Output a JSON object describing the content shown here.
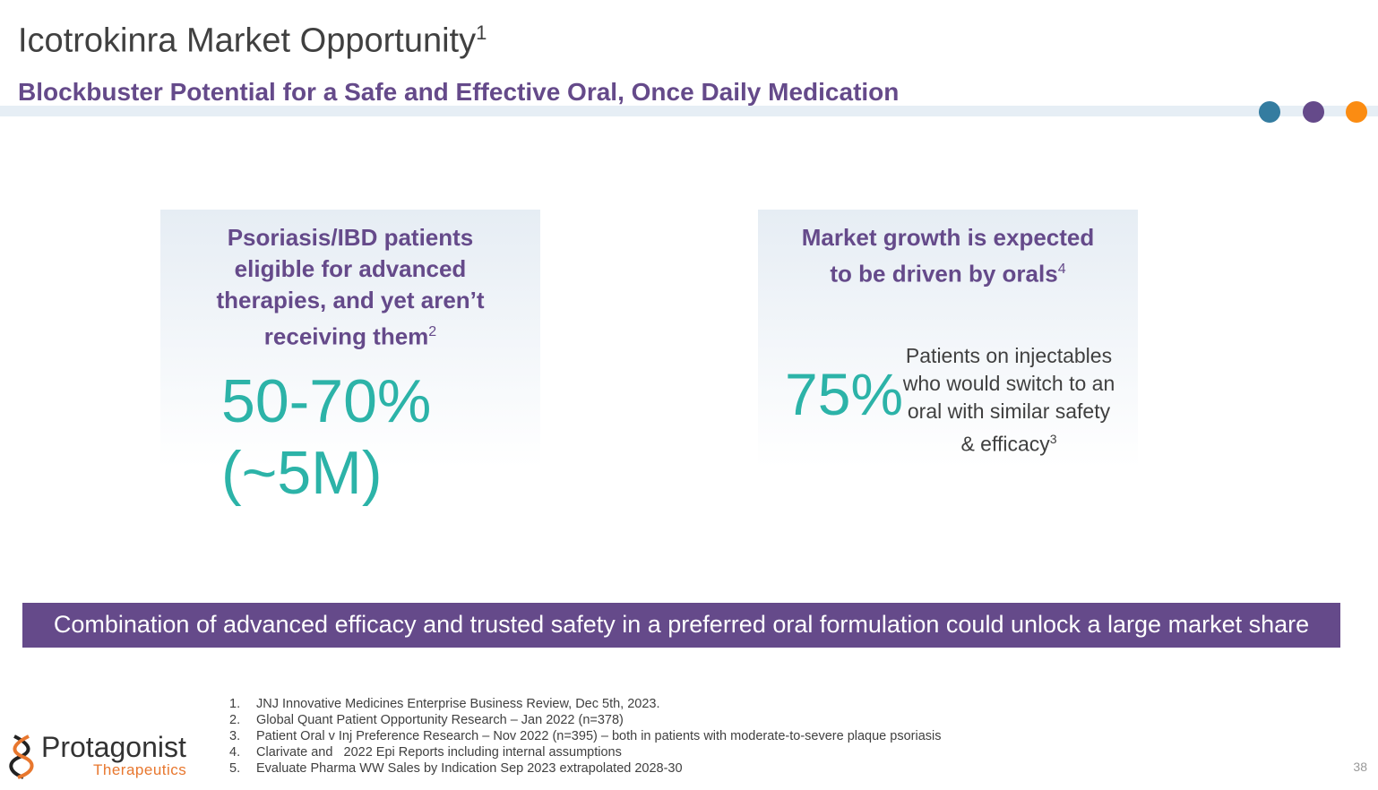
{
  "header": {
    "title": "Icotrokinra Market Opportunity",
    "title_sup": "1",
    "subtitle": "Blockbuster Potential for a Safe and Effective Oral, Once Daily Medication"
  },
  "colors": {
    "dots": [
      "#347ca0",
      "#654a8a",
      "#fb8c12"
    ],
    "purple": "#654a8a",
    "teal": "#2cb3a8"
  },
  "card_left": {
    "heading": "Psoriasis/IBD patients eligible for advanced therapies, and yet aren’t receiving them",
    "heading_sup": "2",
    "value_line1": "50-70%",
    "value_line2": "(~5M)"
  },
  "card_right": {
    "heading": "Market growth is expected to be driven by orals",
    "heading_sup": "4",
    "value": "75%",
    "description": "Patients on injectables who would switch to an oral with similar safety & efficacy",
    "description_sup": "3"
  },
  "banner": "Combination of advanced efficacy and trusted safety in a preferred oral formulation could unlock a large market share",
  "references": [
    {
      "n": "1.",
      "text": "JNJ Innovative Medicines Enterprise Business Review, Dec 5th, 2023."
    },
    {
      "n": "2.",
      "text": "Global Quant Patient Opportunity Research – Jan 2022 (n=378)"
    },
    {
      "n": "3.",
      "text": "Patient Oral v Inj Preference Research – Nov 2022 (n=395) – both in patients with moderate-to-severe plaque psoriasis"
    },
    {
      "n": "4.",
      "text": "Clarivate and   2022 Epi Reports including internal assumptions"
    },
    {
      "n": "5.",
      "text": "Evaluate Pharma WW Sales by Indication Sep 2023 extrapolated 2028-30"
    }
  ],
  "logo": {
    "name": "Protagonist",
    "sub": "Therapeutics"
  },
  "page_number": "38"
}
